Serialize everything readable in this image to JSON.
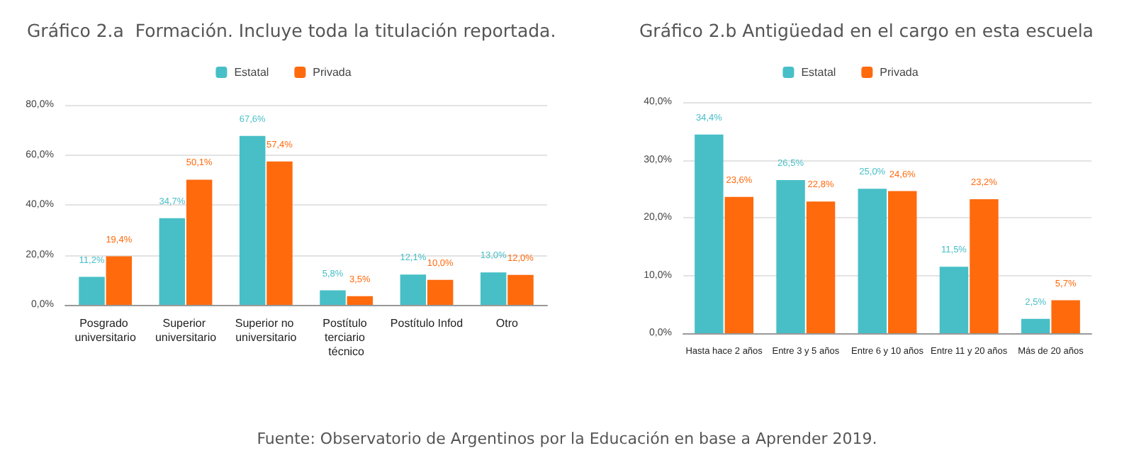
{
  "chart_data": [
    {
      "type": "bar",
      "title": "Gráfico 2.a  Formación. Incluye toda la titulación reportada.",
      "categories": [
        "Posgrado universitario",
        "Superior universitario",
        "Superior no universitario",
        "Postítulo terciario técnico",
        "Postítulo Infod",
        "Otro"
      ],
      "series": [
        {
          "name": "Estatal",
          "color": "#48bfc7",
          "values": [
            11.2,
            34.7,
            67.6,
            5.8,
            12.1,
            13.0
          ],
          "value_labels": [
            "11,2%",
            "34,7%",
            "67,6%",
            "5,8%",
            "12,1%",
            "13,0%"
          ]
        },
        {
          "name": "Privada",
          "color": "#ff6a0d",
          "values": [
            19.4,
            50.1,
            57.4,
            3.5,
            10.0,
            12.0
          ],
          "value_labels": [
            "19,4%",
            "50,1%",
            "57,4%",
            "3,5%",
            "10,0%",
            "12,0%"
          ]
        }
      ],
      "ylim": [
        0,
        80
      ],
      "yticks": [
        {
          "value": 0,
          "label": "0,0%"
        },
        {
          "value": 20,
          "label": "20,0%"
        },
        {
          "value": 40,
          "label": "40,0%"
        },
        {
          "value": 60,
          "label": "60,0%"
        },
        {
          "value": 80,
          "label": "80,0%"
        }
      ],
      "grid": "y",
      "legend": "top",
      "annotations": [
        "Fuente: Observatorio de Argentinos por la Educación en base a Aprender 2019."
      ]
    },
    {
      "type": "bar",
      "title": "Gráfico 2.b Antigüedad en el cargo en esta escuela",
      "categories": [
        "Hasta hace 2 años",
        "Entre 3 y 5 años",
        "Entre 6 y 10 años",
        "Entre 11 y 20 años",
        "Más de 20 años"
      ],
      "series": [
        {
          "name": "Estatal",
          "color": "#48bfc7",
          "values": [
            34.4,
            26.5,
            25.0,
            11.5,
            2.5
          ],
          "value_labels": [
            "34,4%",
            "26,5%",
            "25,0%",
            "11,5%",
            "2,5%"
          ]
        },
        {
          "name": "Privada",
          "color": "#ff6a0d",
          "values": [
            23.6,
            22.8,
            24.6,
            23.2,
            5.7
          ],
          "value_labels": [
            "23,6%",
            "22,8%",
            "24,6%",
            "23,2%",
            "5,7%"
          ]
        }
      ],
      "ylim": [
        0,
        40
      ],
      "yticks": [
        {
          "value": 0,
          "label": "0,0%"
        },
        {
          "value": 10,
          "label": "10,0%"
        },
        {
          "value": 20,
          "label": "20,0%"
        },
        {
          "value": 30,
          "label": "30,0%"
        },
        {
          "value": 40,
          "label": "40,0%"
        }
      ],
      "grid": "y",
      "legend": "top"
    }
  ]
}
